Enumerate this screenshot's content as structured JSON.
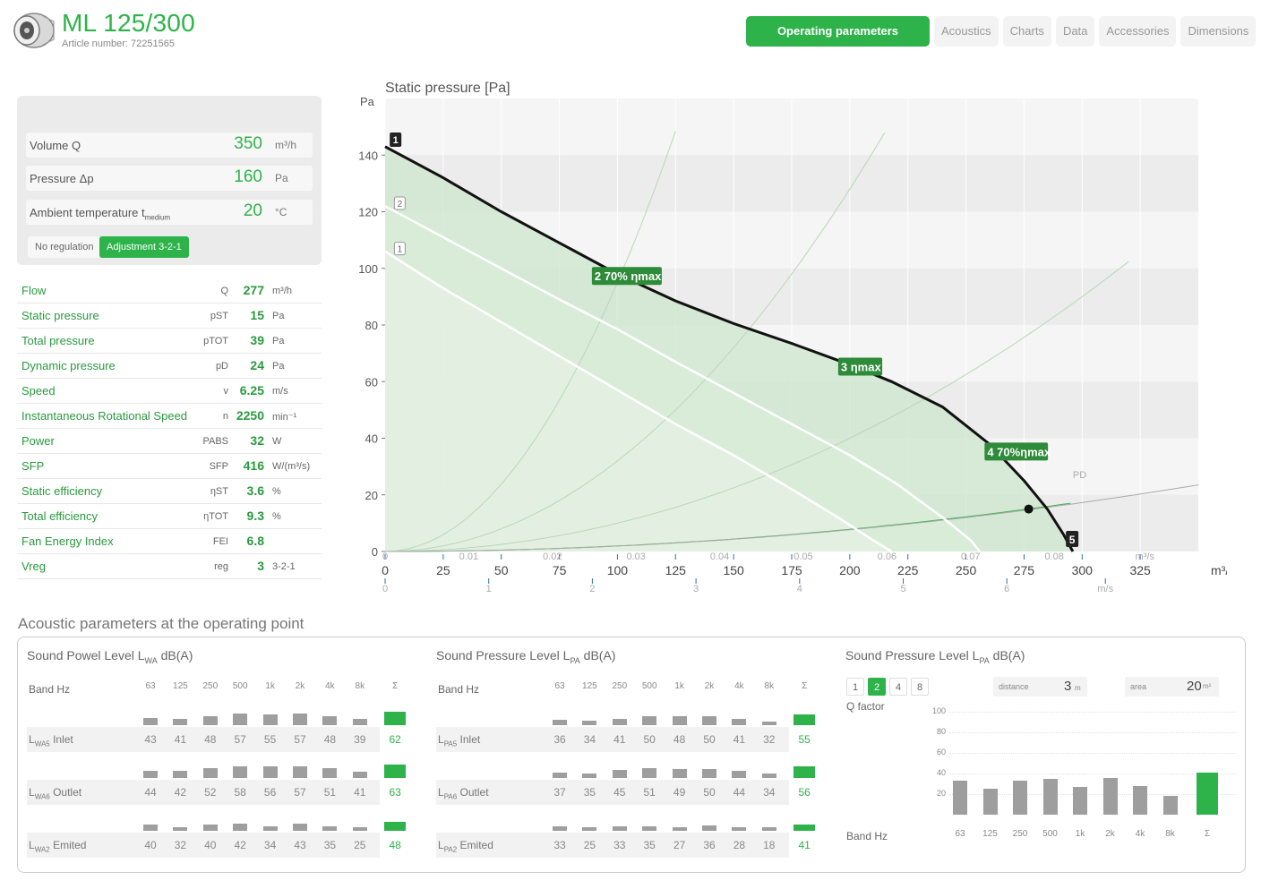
{
  "header": {
    "title": "ML 125/300",
    "article": "Article number: 72251565",
    "tabs": [
      "Operating parameters",
      "Acoustics",
      "Charts",
      "Data",
      "Accessories",
      "Dimensions"
    ]
  },
  "inputs": {
    "volume": {
      "label": "Volume Q",
      "value": "350",
      "unit": "m³/h"
    },
    "pressure": {
      "label": "Pressure Δp",
      "value": "160",
      "unit": "Pa"
    },
    "ambient": {
      "label": "Ambient temperature t",
      "sub": "medium",
      "value": "20",
      "unit": "°C"
    },
    "reg_buttons": [
      "No regulation",
      "Adjustment 3-2-1"
    ]
  },
  "outputs": [
    {
      "label": "Flow",
      "sym": "Q",
      "val": "277",
      "unit": "m³/h"
    },
    {
      "label": "Static pressure",
      "sym": "pST",
      "val": "15",
      "unit": "Pa"
    },
    {
      "label": "Total pressure",
      "sym": "pTOT",
      "val": "39",
      "unit": "Pa"
    },
    {
      "label": "Dynamic pressure",
      "sym": "pD",
      "val": "24",
      "unit": "Pa"
    },
    {
      "label": "Speed",
      "sym": "v",
      "val": "6.25",
      "unit": "m/s"
    },
    {
      "label": "Instantaneous Rotational Speed",
      "sym": "n",
      "val": "2250",
      "unit": "min⁻¹"
    },
    {
      "label": "Power",
      "sym": "PABS",
      "val": "32",
      "unit": "W"
    },
    {
      "label": "SFP",
      "sym": "SFP",
      "val": "416",
      "unit": "W/(m³/s)"
    },
    {
      "label": "Static efficiency",
      "sym": "ηST",
      "val": "3.6",
      "unit": "%"
    },
    {
      "label": "Total efficiency",
      "sym": "ηTOT",
      "val": "9.3",
      "unit": "%"
    },
    {
      "label": "Fan Energy Index",
      "sym": "FEI",
      "val": "6.8",
      "unit": ""
    },
    {
      "label": "Vreg",
      "sym": "reg",
      "val": "3",
      "unit": "3-2-1"
    }
  ],
  "chart_data": {
    "type": "line",
    "title": "Static pressure [Pa]",
    "ylabel": "Pa",
    "xlabel": "m³/h",
    "xlim": [
      0,
      350
    ],
    "ylim": [
      0,
      160
    ],
    "x_ticks": [
      0,
      25,
      50,
      75,
      100,
      125,
      150,
      175,
      200,
      225,
      250,
      275,
      300,
      325
    ],
    "y_ticks": [
      0,
      20,
      40,
      60,
      80,
      100,
      120,
      140
    ],
    "secondary_axis_ms3": [
      "0",
      "0.01",
      "0.02",
      "0.03",
      "0.04",
      "0.05",
      "0.06",
      "0.07",
      "0.08",
      "m³/s"
    ],
    "secondary_axis_ms": [
      "0",
      "1",
      "2",
      "3",
      "4",
      "5",
      "6",
      "m/s"
    ],
    "series": [
      {
        "name": "3",
        "points": [
          [
            0,
            143
          ],
          [
            25,
            132
          ],
          [
            50,
            120
          ],
          [
            75,
            109
          ],
          [
            100,
            98
          ],
          [
            125,
            88.5
          ],
          [
            150,
            80.5
          ],
          [
            175,
            73.5
          ],
          [
            200,
            66
          ],
          [
            218,
            60
          ],
          [
            240,
            51
          ],
          [
            260,
            38
          ],
          [
            275,
            25
          ],
          [
            285,
            15
          ],
          [
            292,
            6
          ],
          [
            296,
            0
          ]
        ]
      },
      {
        "name": "2",
        "points": [
          [
            0,
            122
          ],
          [
            25,
            111
          ],
          [
            50,
            100
          ],
          [
            75,
            89
          ],
          [
            100,
            78.5
          ],
          [
            125,
            67
          ],
          [
            150,
            56
          ],
          [
            175,
            45
          ],
          [
            200,
            34
          ],
          [
            220,
            24
          ],
          [
            240,
            12
          ],
          [
            252,
            4
          ],
          [
            256,
            0
          ]
        ]
      },
      {
        "name": "1",
        "points": [
          [
            0,
            106
          ],
          [
            25,
            93
          ],
          [
            50,
            81
          ],
          [
            75,
            69
          ],
          [
            100,
            57
          ],
          [
            125,
            45
          ],
          [
            150,
            34
          ],
          [
            175,
            22
          ],
          [
            195,
            12
          ],
          [
            210,
            4
          ],
          [
            218,
            0
          ]
        ]
      }
    ],
    "labels": [
      "2 70% ηmax",
      "3 ηmax",
      "4 70%ηmax",
      "PD",
      "5"
    ],
    "operating_point": [
      277,
      15
    ]
  },
  "acoustic": {
    "title": "Acoustic parameters at the operating point",
    "freqs": [
      "63",
      "125",
      "250",
      "500",
      "1k",
      "2k",
      "4k",
      "8k",
      "Σ"
    ],
    "band_label": "Band Hz",
    "power": {
      "title": "Sound Powel Level L",
      "title_sub": "WA",
      "title_suffix": " dB(A)",
      "rows": [
        {
          "sym": "L",
          "sub": "WA5",
          "name": " Inlet",
          "vals": [
            "43",
            "41",
            "48",
            "57",
            "55",
            "57",
            "48",
            "39",
            "62"
          ]
        },
        {
          "sym": "L",
          "sub": "WA6",
          "name": " Outlet",
          "vals": [
            "44",
            "42",
            "52",
            "58",
            "56",
            "57",
            "51",
            "41",
            "63"
          ]
        },
        {
          "sym": "L",
          "sub": "WA2",
          "name": " Emited",
          "vals": [
            "40",
            "32",
            "40",
            "42",
            "34",
            "43",
            "35",
            "25",
            "48"
          ]
        }
      ]
    },
    "pressure": {
      "title": "Sound Pressure Level L",
      "title_sub": "PA",
      "title_suffix": " dB(A)",
      "rows": [
        {
          "sym": "L",
          "sub": "PA5",
          "name": " Inlet",
          "vals": [
            "36",
            "34",
            "41",
            "50",
            "48",
            "50",
            "41",
            "32",
            "55"
          ]
        },
        {
          "sym": "L",
          "sub": "PA6",
          "name": " Outlet",
          "vals": [
            "37",
            "35",
            "45",
            "51",
            "49",
            "50",
            "44",
            "34",
            "56"
          ]
        },
        {
          "sym": "L",
          "sub": "PA2",
          "name": " Emited",
          "vals": [
            "33",
            "25",
            "33",
            "35",
            "27",
            "36",
            "28",
            "18",
            "41"
          ]
        }
      ]
    },
    "pressure2": {
      "title": "Sound Pressure Level L",
      "title_sub": "PA",
      "title_suffix": " dB(A)",
      "q_buttons": [
        "1",
        "2",
        "4",
        "8"
      ],
      "q_label": "Q factor",
      "distance_label": "distance",
      "distance_value": "3",
      "distance_unit": "m",
      "area_label": "area",
      "area_value": "20",
      "area_unit": "m²",
      "y_ticks": [
        "100",
        "80",
        "60",
        "40",
        "20"
      ],
      "bar_values": [
        33,
        25,
        33,
        35,
        27,
        36,
        28,
        18,
        41
      ]
    }
  }
}
